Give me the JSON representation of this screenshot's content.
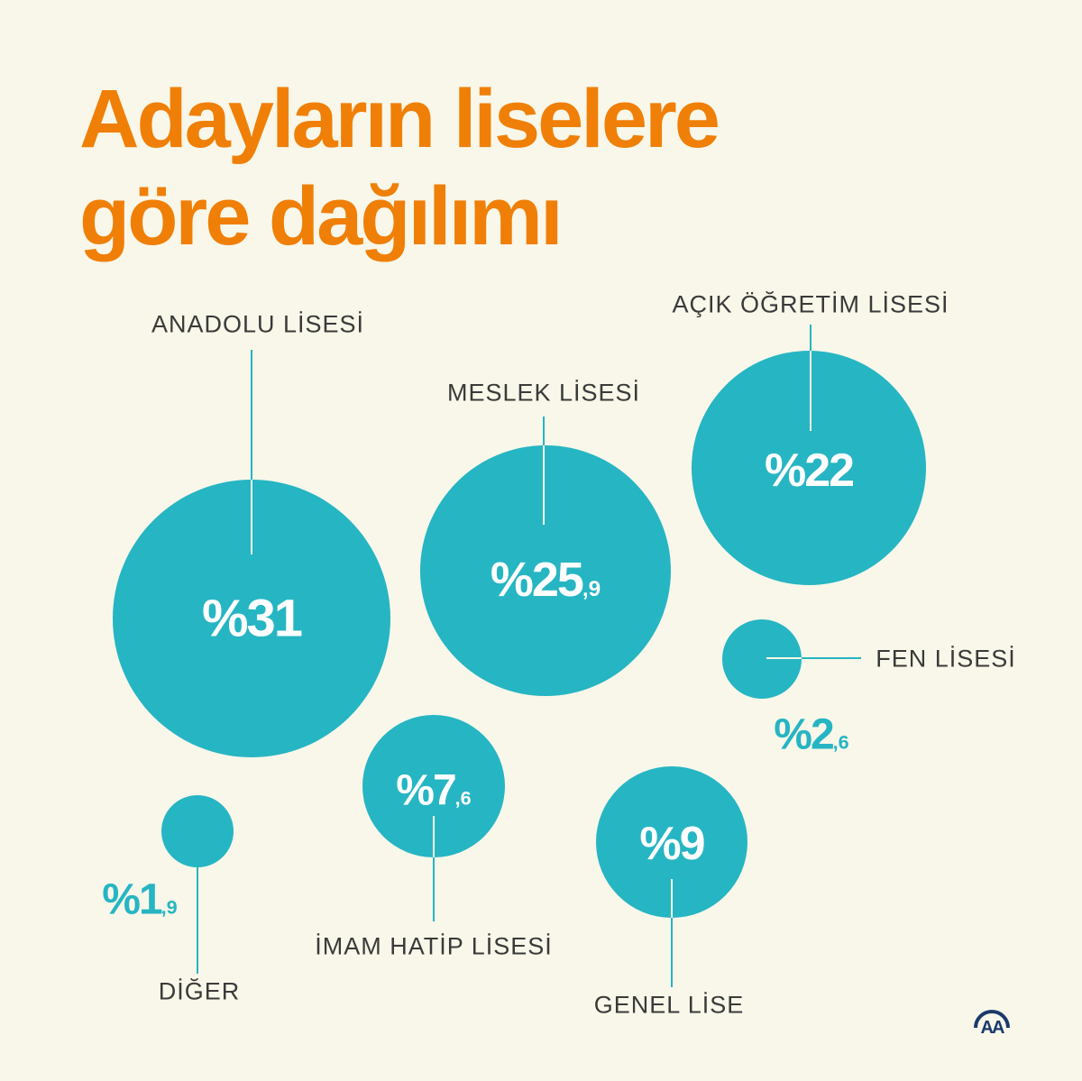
{
  "title": {
    "line1": "Adayların liselere",
    "line2": "göre dağılımı"
  },
  "colors": {
    "background": "#f8f7e9",
    "bubble": "#26b5c3",
    "title": "#f07f07",
    "label": "#3a3a3a",
    "logo": "#1a3a6b"
  },
  "logo": "AA",
  "chart_data": {
    "type": "bubble",
    "title": "Adayların liselere göre dağılımı",
    "unit": "%",
    "series": [
      {
        "category": "ANADOLU LİSESİ",
        "value": 31,
        "display": "%31",
        "display_decimal": ""
      },
      {
        "category": "MESLEK LİSESİ",
        "value": 25.9,
        "display": "%25",
        "display_decimal": ",9"
      },
      {
        "category": "AÇIK ÖĞRETİM LİSESİ",
        "value": 22,
        "display": "%22",
        "display_decimal": ""
      },
      {
        "category": "FEN LİSESİ",
        "value": 2.6,
        "display": "%2",
        "display_decimal": ",6"
      },
      {
        "category": "DİĞER",
        "value": 1.9,
        "display": "%1",
        "display_decimal": ",9"
      },
      {
        "category": "İMAM HATİP LİSESİ",
        "value": 7.6,
        "display": "%7",
        "display_decimal": ",6"
      },
      {
        "category": "GENEL LİSE",
        "value": 9,
        "display": "%9",
        "display_decimal": ""
      }
    ]
  }
}
